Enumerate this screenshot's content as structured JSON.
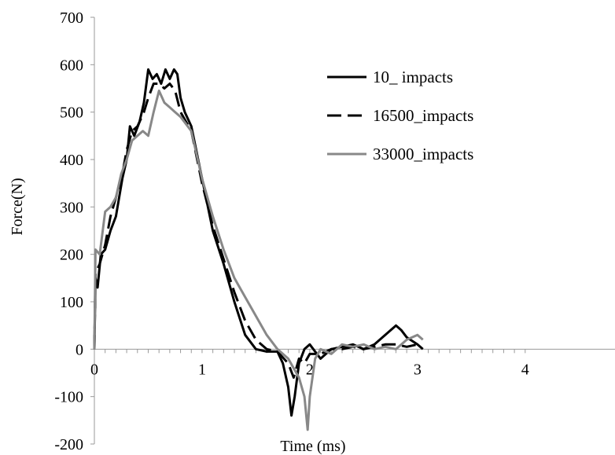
{
  "chart_data": {
    "type": "line",
    "title": "",
    "xlabel": "Time (ms)",
    "ylabel": "Force(N)",
    "xlim": [
      0,
      4
    ],
    "ylim": [
      -200,
      700
    ],
    "x_ticks": [
      "0",
      "1",
      "2",
      "3",
      "4"
    ],
    "y_ticks": [
      "-200",
      "-100",
      "0",
      "100",
      "200",
      "300",
      "400",
      "500",
      "600",
      "700"
    ],
    "grid": false,
    "legend_position": "top-right",
    "series": [
      {
        "name": "10_ impacts",
        "color": "#000000",
        "style": "solid",
        "points": [
          [
            0,
            0
          ],
          [
            0.01,
            150
          ],
          [
            0.03,
            130
          ],
          [
            0.06,
            200
          ],
          [
            0.1,
            210
          ],
          [
            0.15,
            250
          ],
          [
            0.2,
            280
          ],
          [
            0.26,
            360
          ],
          [
            0.3,
            400
          ],
          [
            0.33,
            470
          ],
          [
            0.37,
            450
          ],
          [
            0.42,
            480
          ],
          [
            0.46,
            520
          ],
          [
            0.5,
            590
          ],
          [
            0.54,
            570
          ],
          [
            0.58,
            580
          ],
          [
            0.62,
            560
          ],
          [
            0.66,
            590
          ],
          [
            0.7,
            570
          ],
          [
            0.74,
            590
          ],
          [
            0.77,
            580
          ],
          [
            0.8,
            530
          ],
          [
            0.84,
            500
          ],
          [
            0.9,
            470
          ],
          [
            1.0,
            360
          ],
          [
            1.1,
            250
          ],
          [
            1.2,
            180
          ],
          [
            1.3,
            100
          ],
          [
            1.4,
            30
          ],
          [
            1.5,
            0
          ],
          [
            1.6,
            -5
          ],
          [
            1.7,
            -5
          ],
          [
            1.75,
            -30
          ],
          [
            1.8,
            -80
          ],
          [
            1.83,
            -140
          ],
          [
            1.86,
            -100
          ],
          [
            1.9,
            -30
          ],
          [
            1.95,
            0
          ],
          [
            2.0,
            10
          ],
          [
            2.05,
            -5
          ],
          [
            2.1,
            -20
          ],
          [
            2.2,
            0
          ],
          [
            2.3,
            5
          ],
          [
            2.4,
            10
          ],
          [
            2.5,
            0
          ],
          [
            2.6,
            10
          ],
          [
            2.7,
            30
          ],
          [
            2.8,
            50
          ],
          [
            2.85,
            40
          ],
          [
            2.9,
            25
          ],
          [
            3.0,
            10
          ],
          [
            3.05,
            0
          ]
        ]
      },
      {
        "name": "16500_impacts",
        "color": "#000000",
        "style": "dashed",
        "points": [
          [
            0,
            0
          ],
          [
            0.01,
            160
          ],
          [
            0.05,
            180
          ],
          [
            0.1,
            220
          ],
          [
            0.15,
            280
          ],
          [
            0.2,
            320
          ],
          [
            0.26,
            370
          ],
          [
            0.3,
            420
          ],
          [
            0.35,
            460
          ],
          [
            0.4,
            470
          ],
          [
            0.46,
            500
          ],
          [
            0.5,
            530
          ],
          [
            0.55,
            560
          ],
          [
            0.6,
            560
          ],
          [
            0.65,
            550
          ],
          [
            0.7,
            560
          ],
          [
            0.75,
            545
          ],
          [
            0.8,
            500
          ],
          [
            0.9,
            460
          ],
          [
            1.0,
            350
          ],
          [
            1.1,
            260
          ],
          [
            1.2,
            190
          ],
          [
            1.3,
            120
          ],
          [
            1.4,
            60
          ],
          [
            1.5,
            20
          ],
          [
            1.6,
            0
          ],
          [
            1.7,
            -5
          ],
          [
            1.8,
            -30
          ],
          [
            1.85,
            -60
          ],
          [
            1.9,
            -20
          ],
          [
            1.95,
            -30
          ],
          [
            2.0,
            -10
          ],
          [
            2.1,
            -10
          ],
          [
            2.2,
            0
          ],
          [
            2.3,
            0
          ],
          [
            2.4,
            5
          ],
          [
            2.5,
            0
          ],
          [
            2.6,
            5
          ],
          [
            2.7,
            10
          ],
          [
            2.8,
            10
          ],
          [
            2.9,
            5
          ],
          [
            3.0,
            10
          ]
        ]
      },
      {
        "name": "33000_impacts",
        "color": "#888888",
        "style": "solid",
        "points": [
          [
            0,
            0
          ],
          [
            0.01,
            210
          ],
          [
            0.05,
            200
          ],
          [
            0.1,
            290
          ],
          [
            0.15,
            300
          ],
          [
            0.2,
            320
          ],
          [
            0.25,
            370
          ],
          [
            0.3,
            400
          ],
          [
            0.35,
            440
          ],
          [
            0.4,
            450
          ],
          [
            0.45,
            460
          ],
          [
            0.5,
            450
          ],
          [
            0.55,
            500
          ],
          [
            0.6,
            545
          ],
          [
            0.65,
            520
          ],
          [
            0.7,
            510
          ],
          [
            0.75,
            500
          ],
          [
            0.8,
            490
          ],
          [
            0.9,
            460
          ],
          [
            1.0,
            360
          ],
          [
            1.1,
            280
          ],
          [
            1.2,
            210
          ],
          [
            1.3,
            150
          ],
          [
            1.4,
            110
          ],
          [
            1.5,
            70
          ],
          [
            1.6,
            30
          ],
          [
            1.7,
            0
          ],
          [
            1.8,
            -20
          ],
          [
            1.9,
            -60
          ],
          [
            1.95,
            -100
          ],
          [
            1.98,
            -170
          ],
          [
            2.0,
            -100
          ],
          [
            2.05,
            -20
          ],
          [
            2.1,
            0
          ],
          [
            2.2,
            -10
          ],
          [
            2.3,
            10
          ],
          [
            2.4,
            5
          ],
          [
            2.5,
            10
          ],
          [
            2.6,
            0
          ],
          [
            2.7,
            5
          ],
          [
            2.8,
            0
          ],
          [
            2.9,
            20
          ],
          [
            3.0,
            30
          ],
          [
            3.05,
            20
          ]
        ]
      }
    ]
  }
}
